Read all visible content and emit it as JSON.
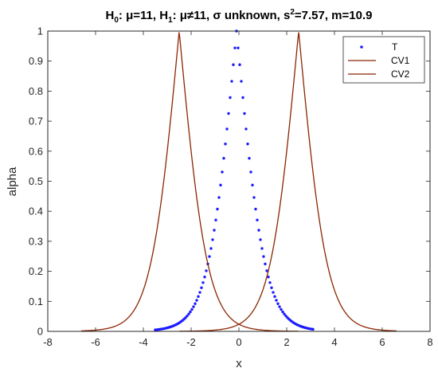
{
  "chart_data": {
    "type": "line",
    "title_parts": {
      "h0": "H",
      "h0_sub": "0",
      "h0_rest": ": μ=11, ",
      "h1": "H",
      "h1_sub": "1",
      "h1_rest": ": μ≠11, σ unknown,  s",
      "s_sup": "2",
      "tail": "=7.57, m=10.9"
    },
    "xlabel": "x",
    "ylabel": "alpha",
    "xlim": [
      -8,
      8
    ],
    "ylim": [
      0,
      1
    ],
    "xticks": [
      "-8",
      "-6",
      "-4",
      "-2",
      "0",
      "2",
      "4",
      "6",
      "8"
    ],
    "yticks": [
      "0",
      "0.1",
      "0.2",
      "0.3",
      "0.4",
      "0.5",
      "0.6",
      "0.7",
      "0.8",
      "0.9",
      "1"
    ],
    "grid": false,
    "legend_position": "top-right",
    "sample_mean_offset": -0.1,
    "critical_peak": 2.5,
    "series": [
      {
        "name": "T",
        "style": "dots",
        "color": "#1a1aff",
        "x_range": [
          -3.5,
          3.1
        ],
        "points": 100
      },
      {
        "name": "CV1",
        "style": "line",
        "color": "#8b2500",
        "x_range": [
          -6.6,
          2.5
        ]
      },
      {
        "name": "CV2",
        "style": "line",
        "color": "#8b2500",
        "x_range": [
          -2.5,
          6.6
        ]
      }
    ]
  }
}
